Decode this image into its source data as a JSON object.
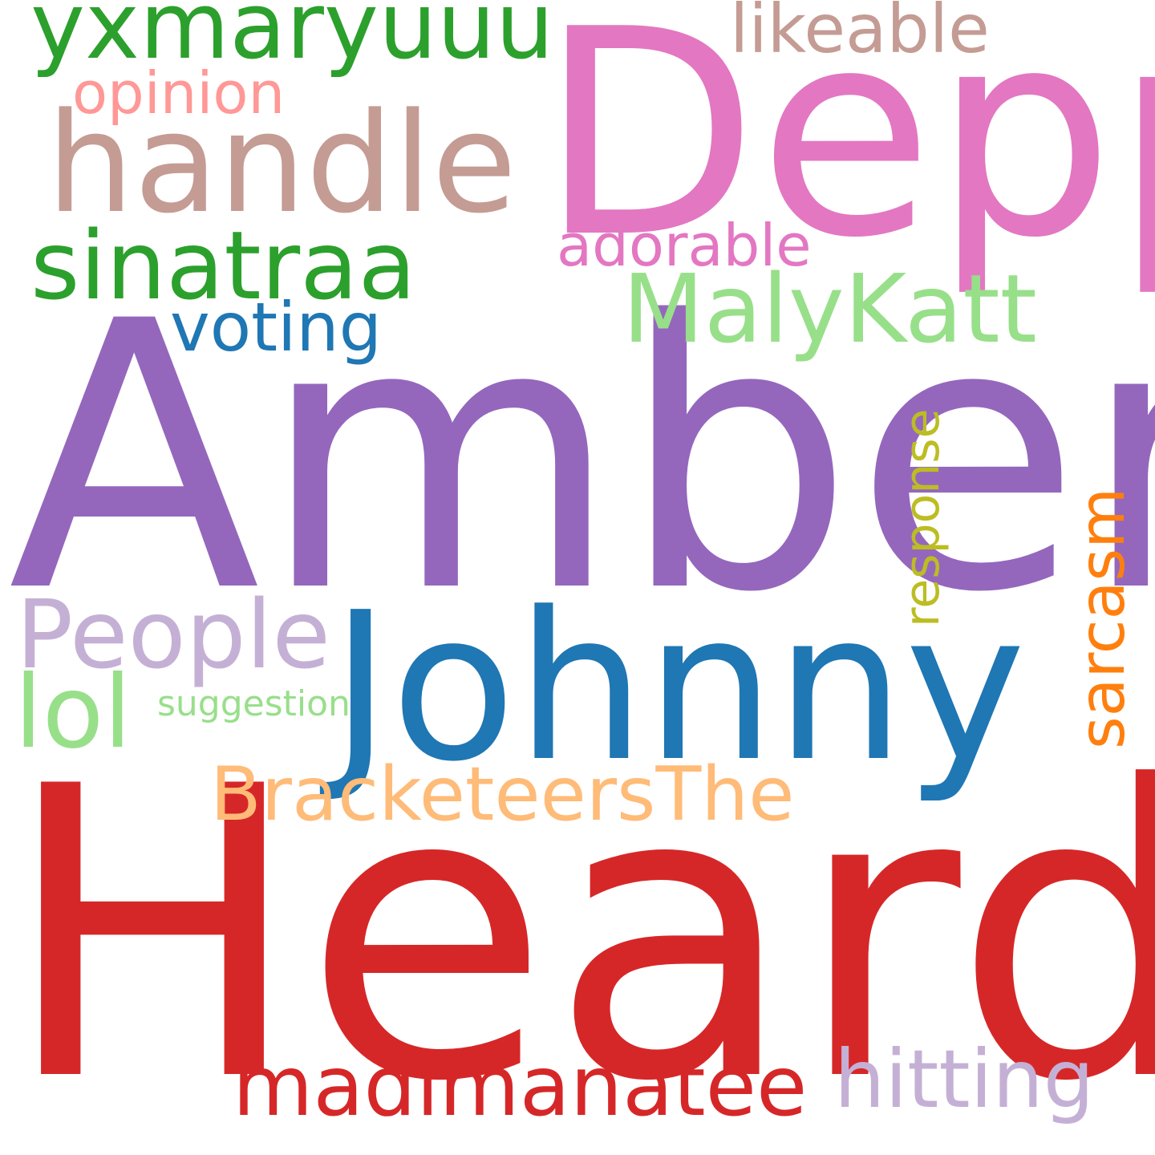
{
  "words": [
    {
      "id": "amber",
      "text": "Amber",
      "color": "#9467bd"
    },
    {
      "id": "heard",
      "text": "Heard",
      "color": "#d62728"
    },
    {
      "id": "depp",
      "text": "Depp",
      "color": "#e377c2"
    },
    {
      "id": "johnny",
      "text": "Johnny",
      "color": "#1f77b4"
    },
    {
      "id": "handle",
      "text": "handle",
      "color": "#c49c94"
    },
    {
      "id": "yxmaryuuu",
      "text": "yxmaryuuu",
      "color": "#2ca02c"
    },
    {
      "id": "sinatraa",
      "text": "sinatraa",
      "color": "#2ca02c"
    },
    {
      "id": "malykatt",
      "text": "MalyKatt",
      "color": "#98df8a"
    },
    {
      "id": "people",
      "text": "People",
      "color": "#c5b0d5"
    },
    {
      "id": "lol",
      "text": "lol",
      "color": "#98df8a"
    },
    {
      "id": "brацketeers",
      "text": "BracketeersThe",
      "color": "#ffbb78"
    },
    {
      "id": "madimanatee",
      "text": "madimanatee",
      "color": "#d62728"
    },
    {
      "id": "hitting",
      "text": "hitting",
      "color": "#c5b0d5"
    },
    {
      "id": "voting",
      "text": "voting",
      "color": "#1f77b4"
    },
    {
      "id": "likeable",
      "text": "likeable",
      "color": "#c49c94"
    },
    {
      "id": "opinion",
      "text": "opinion",
      "color": "#ff9896"
    },
    {
      "id": "adorable",
      "text": "adorable",
      "color": "#e377c2"
    },
    {
      "id": "response",
      "text": "response",
      "color": "#bcbd22"
    },
    {
      "id": "sarcasm",
      "text": "sarcasm",
      "color": "#ff7f0e"
    },
    {
      "id": "suggestion",
      "text": "suggestion",
      "color": "#98df8a"
    }
  ]
}
